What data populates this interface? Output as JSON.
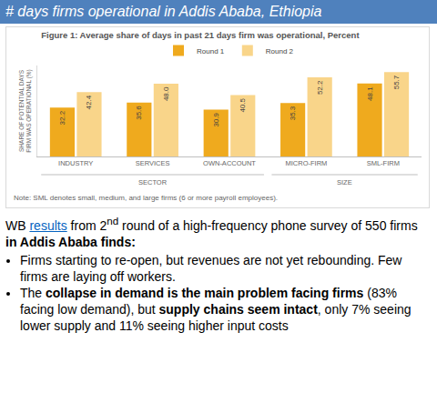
{
  "header": {
    "title": "# days firms operational in Addis Ababa, Ethiopia"
  },
  "chart_data": {
    "type": "bar",
    "title": "Figure 1: Average share of days in past 21 days firm was operational, Percent",
    "y_label": "SHARE OF POTENTIAL DAYS\nFIRM WAS OPERATIONAL (%)",
    "categories": [
      "INDUSTRY",
      "SERVICES",
      "OWN-ACCOUNT",
      "MICRO-FIRM",
      "SML-FIRM"
    ],
    "groups": [
      {
        "label": "SECTOR",
        "categories": [
          "INDUSTRY",
          "SERVICES",
          "OWN-ACCOUNT"
        ]
      },
      {
        "label": "SIZE",
        "categories": [
          "MICRO-FIRM",
          "SML-FIRM"
        ]
      }
    ],
    "series": [
      {
        "name": "Round 1",
        "color": "#EFAA1E",
        "values": [
          32.2,
          35.6,
          30.9,
          35.3,
          48.1
        ],
        "value_labels": [
          "32.2",
          "35.6",
          "30.9",
          "35.3",
          "48.1"
        ]
      },
      {
        "name": "Round 2",
        "color": "#F9D58A",
        "values": [
          42.4,
          48.0,
          40.5,
          52.2,
          55.7
        ],
        "value_labels": [
          "42.4",
          "48.0",
          "40.5",
          "52.2",
          "55.7"
        ]
      }
    ],
    "ylim": [
      0,
      60
    ],
    "yticks": [],
    "tick_labels": "x",
    "grid": false,
    "legend": "top",
    "data_labels": true,
    "note": "Note: SML denotes small, medium, and large firms (6 or more payroll employees)."
  },
  "text": {
    "intro": [
      {
        "text": "WB "
      },
      {
        "text": "results",
        "link": true
      },
      {
        "text": " from 2"
      },
      {
        "text": "nd",
        "sup": true
      },
      {
        "text": " round of a high-frequency phone survey of 550 firms "
      },
      {
        "text": "in Addis Ababa finds:",
        "bold": true
      }
    ],
    "bullets": [
      [
        {
          "text": "Firms starting to re-open, but revenues are not yet rebounding. Few firms are laying off workers."
        }
      ],
      [
        {
          "text": "The "
        },
        {
          "text": "collapse in demand is the main problem facing firms",
          "bold": true
        },
        {
          "text": " (83% facing low demand), but "
        },
        {
          "text": "supply chains seem intact",
          "bold": true
        },
        {
          "text": ", only 7% seeing lower supply and 11% seeing higher input costs"
        }
      ]
    ]
  }
}
